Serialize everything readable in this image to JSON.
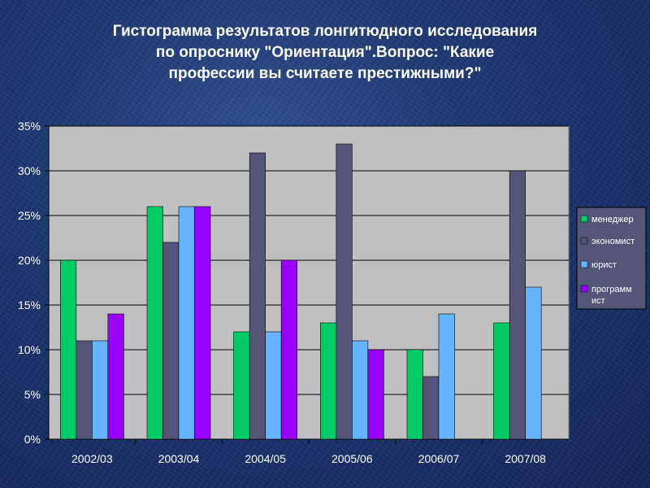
{
  "chart_data": {
    "type": "bar",
    "title_lines": [
      "Гистограмма результатов лонгитюдного исследования",
      "по опроснику \"Ориентация\".Вопрос: \"Какие",
      "профессии вы считаете престижными?\""
    ],
    "categories": [
      "2002/03",
      "2003/04",
      "2004/05",
      "2005/06",
      "2006/07",
      "2007/08"
    ],
    "yticks": [
      "0%",
      "5%",
      "10%",
      "15%",
      "20%",
      "25%",
      "30%",
      "35%"
    ],
    "ylim": [
      0,
      35
    ],
    "grid": true,
    "legend_position": "right",
    "series": [
      {
        "name": "менеджер",
        "color": "#00cc66",
        "values": [
          20,
          26,
          12,
          13,
          10,
          13
        ]
      },
      {
        "name": "экономист",
        "color": "#55557a",
        "values": [
          11,
          22,
          32,
          33,
          7,
          30
        ]
      },
      {
        "name": "юрист",
        "color": "#66b3ff",
        "values": [
          11,
          26,
          12,
          11,
          14,
          17
        ]
      },
      {
        "name": "программ ист",
        "label_lines": [
          "программ",
          "ист"
        ],
        "color": "#9900ff",
        "values": [
          14,
          26,
          20,
          10,
          null,
          null
        ]
      }
    ]
  }
}
